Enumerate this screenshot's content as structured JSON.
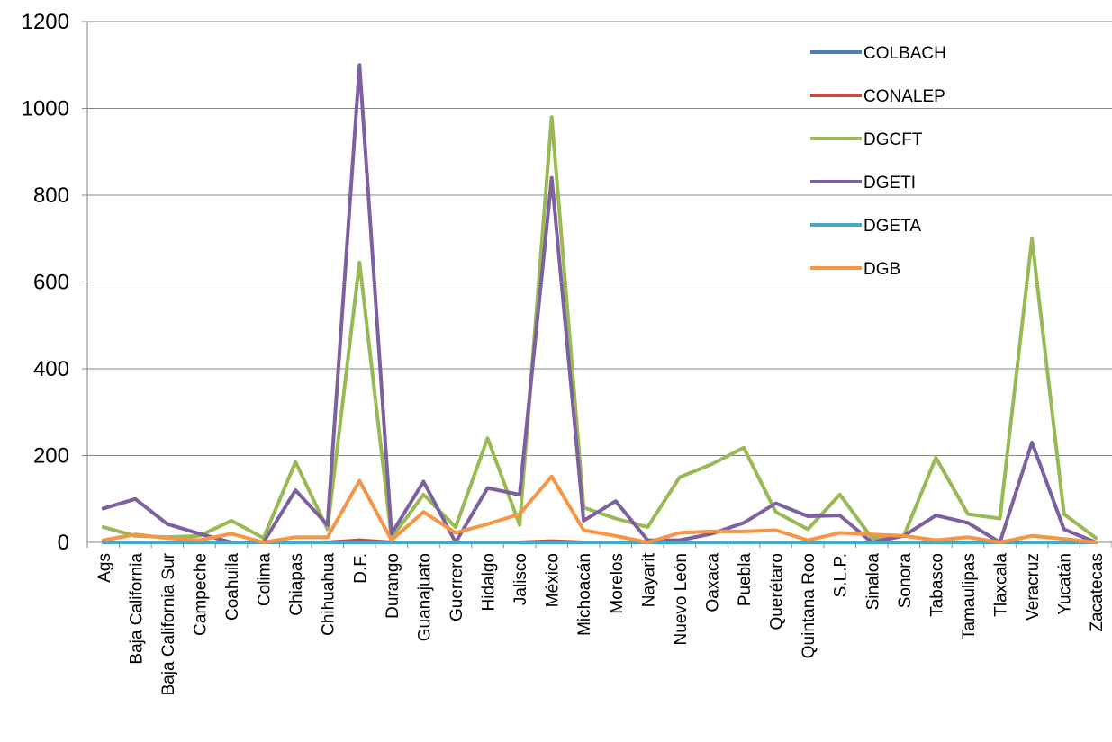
{
  "chart_data": {
    "type": "line",
    "title": "",
    "xlabel": "",
    "ylabel": "",
    "ylim": [
      0,
      1200
    ],
    "yticks": [
      0,
      200,
      400,
      600,
      800,
      1000,
      1200
    ],
    "grid": "horizontal",
    "legend_position": "top-right",
    "categories": [
      "Ags",
      "Baja California",
      "Baja California Sur",
      "Campeche",
      "Coahuila",
      "Colima",
      "Chiapas",
      "Chihuahua",
      "D.F.",
      "Durango",
      "Guanajuato",
      "Guerrero",
      "Hidalgo",
      "Jalisco",
      "México",
      "Michoacán",
      "Morelos",
      "Nayarit",
      "Nuevo León",
      "Oaxaca",
      "Puebla",
      "Querétaro",
      "Quintana Roo",
      "S.L.P.",
      "Sinaloa",
      "Sonora",
      "Tabasco",
      "Tamaulipas",
      "Tlaxcala",
      "Veracruz",
      "Yucatán",
      "Zacatecas"
    ],
    "series": [
      {
        "name": "COLBACH",
        "color": "#4a7ebb",
        "values": [
          0,
          0,
          0,
          0,
          0,
          0,
          0,
          0,
          0,
          0,
          0,
          0,
          0,
          0,
          0,
          0,
          0,
          0,
          0,
          0,
          0,
          0,
          0,
          0,
          0,
          0,
          0,
          0,
          0,
          0,
          0,
          0
        ]
      },
      {
        "name": "CONALEP",
        "color": "#be4b48",
        "values": [
          0,
          0,
          0,
          0,
          0,
          0,
          0,
          0,
          5,
          0,
          0,
          0,
          0,
          0,
          3,
          0,
          0,
          0,
          0,
          0,
          0,
          0,
          0,
          0,
          0,
          0,
          0,
          0,
          0,
          0,
          0,
          0
        ]
      },
      {
        "name": "DGCFT",
        "color": "#98b954",
        "values": [
          35,
          15,
          12,
          15,
          50,
          10,
          185,
          30,
          645,
          10,
          110,
          35,
          240,
          40,
          980,
          80,
          55,
          35,
          150,
          180,
          218,
          70,
          30,
          110,
          10,
          15,
          195,
          65,
          55,
          700,
          65,
          10
        ]
      },
      {
        "name": "DGETI",
        "color": "#7d60a0",
        "values": [
          78,
          100,
          42,
          20,
          0,
          0,
          120,
          40,
          1100,
          20,
          140,
          0,
          125,
          110,
          840,
          50,
          95,
          5,
          5,
          20,
          45,
          90,
          60,
          62,
          0,
          15,
          62,
          45,
          0,
          230,
          30,
          0
        ]
      },
      {
        "name": "DGETA",
        "color": "#46aac5",
        "values": [
          0,
          0,
          0,
          0,
          0,
          0,
          0,
          0,
          0,
          0,
          0,
          0,
          0,
          0,
          0,
          0,
          0,
          0,
          0,
          0,
          0,
          0,
          0,
          0,
          0,
          0,
          0,
          0,
          0,
          0,
          0,
          0
        ]
      },
      {
        "name": "DGB",
        "color": "#f69546",
        "values": [
          5,
          18,
          10,
          5,
          20,
          0,
          12,
          12,
          142,
          5,
          70,
          22,
          42,
          65,
          152,
          28,
          15,
          0,
          22,
          25,
          25,
          28,
          5,
          22,
          18,
          15,
          5,
          12,
          0,
          15,
          8,
          0
        ]
      }
    ]
  }
}
